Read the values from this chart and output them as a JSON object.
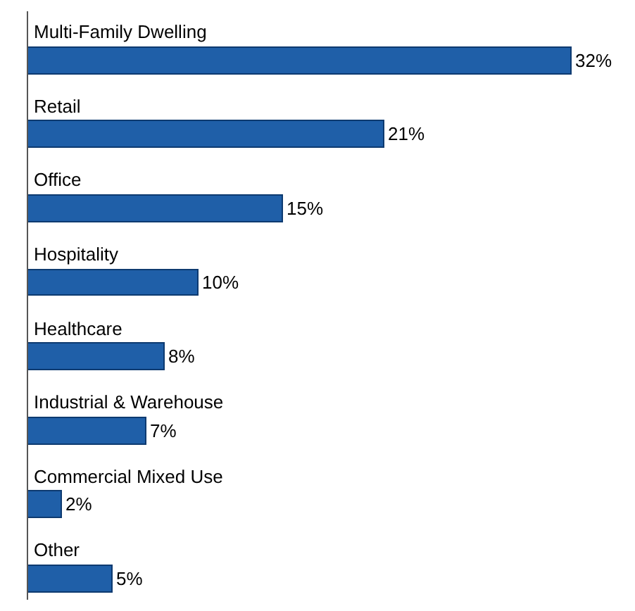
{
  "chart_data": {
    "type": "bar",
    "orientation": "horizontal",
    "categories": [
      "Multi-Family Dwelling",
      "Retail",
      "Office",
      "Hospitality",
      "Healthcare",
      "Industrial & Warehouse",
      "Commercial Mixed Use",
      "Other"
    ],
    "values": [
      32,
      21,
      15,
      10,
      8,
      7,
      2,
      5
    ],
    "value_labels": [
      "32%",
      "21%",
      "15%",
      "10%",
      "8%",
      "7%",
      "2%",
      "5%"
    ],
    "color": "#1f5fa8"
  }
}
